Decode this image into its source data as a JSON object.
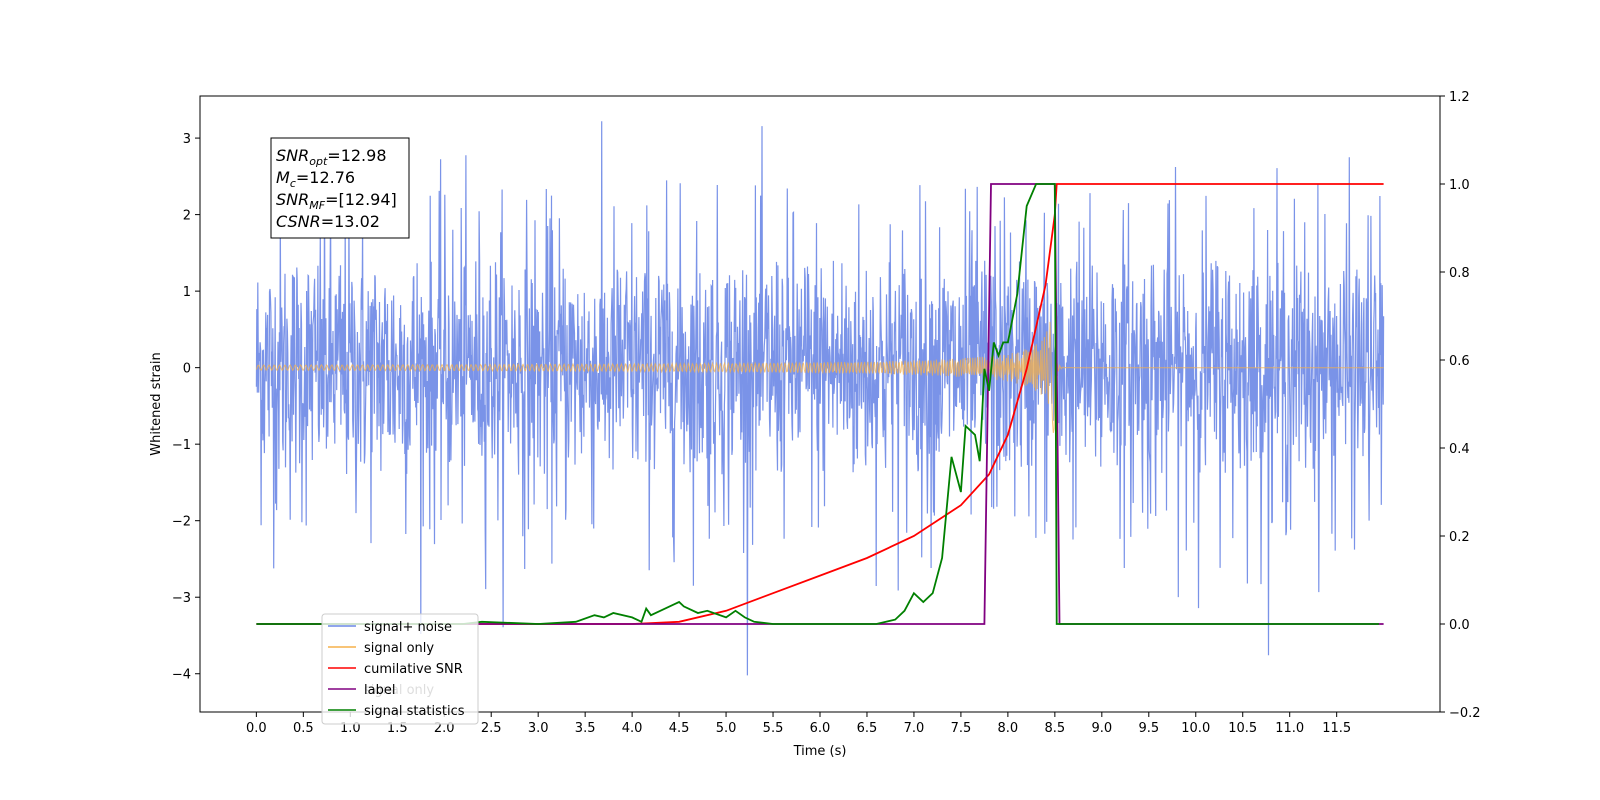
{
  "chart_data": {
    "type": "line",
    "xlabel": "Time (s)",
    "ylabel_left": "Whitened strain",
    "ylabel_right": "",
    "xlim": [
      -0.6,
      12.6
    ],
    "ylim_left": [
      -4.5,
      3.55
    ],
    "ylim_right": [
      -0.2,
      1.2
    ],
    "grid": false,
    "x_ticks": [
      0.0,
      0.5,
      1.0,
      1.5,
      2.0,
      2.5,
      3.0,
      3.5,
      4.0,
      4.5,
      5.0,
      5.5,
      6.0,
      6.5,
      7.0,
      7.5,
      8.0,
      8.5,
      9.0,
      9.5,
      10.0,
      10.5,
      11.0,
      11.5
    ],
    "x_tick_labels": [
      "0.0",
      "0.5",
      "1.0",
      "1.5",
      "2.0",
      "2.5",
      "3.0",
      "3.5",
      "4.0",
      "4.5",
      "5.0",
      "5.5",
      "6.0",
      "6.5",
      "7.0",
      "7.5",
      "8.0",
      "8.5",
      "9.0",
      "9.5",
      "10.0",
      "10.5",
      "11.0",
      "11.5"
    ],
    "y_left_ticks": [
      3,
      2,
      1,
      0,
      -1,
      -2,
      -3,
      -4
    ],
    "y_left_tick_labels": [
      "3",
      "2",
      "1",
      "0",
      "−1",
      "−2",
      "−3",
      "−4"
    ],
    "y_right_ticks": [
      1.2,
      1.0,
      0.8,
      0.6,
      0.4,
      0.2,
      0.0,
      -0.2
    ],
    "y_right_tick_labels": [
      "1.2",
      "1.0",
      "0.8",
      "0.6",
      "0.4",
      "0.2",
      "0.0",
      "−0.2"
    ],
    "legend_position": "lower-left",
    "series": [
      {
        "name": "signal+ noise",
        "axis": "left",
        "color": "#6b87e6",
        "description_values": {
          "x_start": 0.0,
          "x_end": 12.0,
          "amplitude_envelope": 1.6,
          "max": 3.22,
          "min": -4.1
        }
      },
      {
        "name": "signal only",
        "axis": "left",
        "color": "#f5b04a",
        "chirp": {
          "x_start": 0.0,
          "merger_x": 8.5,
          "peak_amplitude": 0.75,
          "x_end": 12.0
        }
      },
      {
        "name": "cumilative SNR",
        "axis": "right",
        "color": "#ff0000",
        "x": [
          0.0,
          2.0,
          4.0,
          4.5,
          5.0,
          5.5,
          6.0,
          6.5,
          7.0,
          7.5,
          7.8,
          8.0,
          8.2,
          8.4,
          8.5,
          8.52,
          9.0,
          10.0,
          11.0,
          12.0
        ],
        "values": [
          0.0,
          0.0,
          0.0,
          0.005,
          0.03,
          0.07,
          0.11,
          0.15,
          0.2,
          0.27,
          0.34,
          0.43,
          0.58,
          0.77,
          0.93,
          1.0,
          1.0,
          1.0,
          1.0,
          1.0
        ]
      },
      {
        "name": "label",
        "axis": "right",
        "color": "#800080",
        "x": [
          0.0,
          7.75,
          7.82,
          8.5,
          8.55,
          12.0
        ],
        "values": [
          0.0,
          0.0,
          1.0,
          1.0,
          0.0,
          0.0
        ]
      },
      {
        "name": "signal only",
        "axis": "right",
        "color": "#ffffff",
        "legend_only": true
      },
      {
        "name": "signal statistics",
        "axis": "right",
        "color": "#008000",
        "x": [
          0.0,
          2.2,
          2.4,
          3.0,
          3.4,
          3.6,
          3.7,
          3.8,
          4.0,
          4.1,
          4.15,
          4.2,
          4.3,
          4.45,
          4.5,
          4.55,
          4.7,
          4.8,
          5.0,
          5.1,
          5.2,
          5.3,
          5.5,
          6.0,
          6.6,
          6.8,
          6.9,
          7.0,
          7.1,
          7.2,
          7.3,
          7.4,
          7.5,
          7.55,
          7.65,
          7.7,
          7.75,
          7.8,
          7.85,
          7.9,
          7.95,
          8.0,
          8.1,
          8.2,
          8.3,
          8.4,
          8.5,
          8.52,
          8.55,
          9.0,
          11.0,
          11.95
        ],
        "values": [
          0.0,
          0.0,
          0.005,
          0.0,
          0.005,
          0.02,
          0.015,
          0.025,
          0.015,
          0.005,
          0.035,
          0.02,
          0.03,
          0.045,
          0.05,
          0.04,
          0.025,
          0.03,
          0.015,
          0.03,
          0.015,
          0.005,
          0.0,
          0.0,
          0.0,
          0.01,
          0.03,
          0.07,
          0.05,
          0.07,
          0.15,
          0.38,
          0.3,
          0.45,
          0.43,
          0.37,
          0.58,
          0.53,
          0.64,
          0.61,
          0.64,
          0.64,
          0.75,
          0.95,
          1.0,
          1.0,
          1.0,
          0.0,
          0.0,
          0.0,
          0.0,
          0.0
        ]
      }
    ],
    "annotation_lines": [
      {
        "label": "SNR",
        "sub": "opt",
        "value": "=12.98"
      },
      {
        "label": "M",
        "sub": "c",
        "value": "=12.76"
      },
      {
        "label": "SNR",
        "sub": "MF",
        "value": "=[12.94]"
      },
      {
        "label": "CSNR",
        "sub": "",
        "value": "=13.02"
      }
    ]
  }
}
